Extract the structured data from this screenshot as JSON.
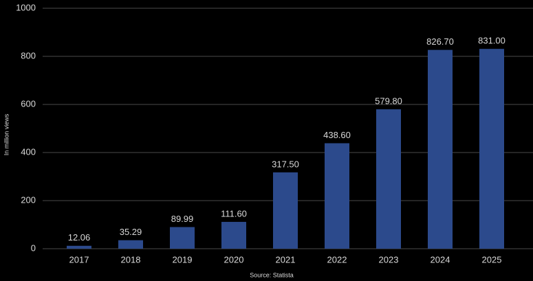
{
  "chart_data": {
    "type": "bar",
    "y_label": "In million views",
    "x_label": "Source: Statista",
    "categories": [
      "2017",
      "2018",
      "2019",
      "2020",
      "2021",
      "2022",
      "2023",
      "2024",
      "2025"
    ],
    "values": [
      12.06,
      35.29,
      89.99,
      111.6,
      317.5,
      438.6,
      579.8,
      826.7,
      831
    ],
    "value_labels": [
      "12.06",
      "35.29",
      "89.99",
      "111.60",
      "317.50",
      "438.60",
      "579.80",
      "826.70",
      "831.00"
    ],
    "color": "#2c4a8c",
    "ylim": [
      0,
      1000
    ],
    "yticks": [
      0,
      200,
      400,
      600,
      800,
      1000
    ],
    "grid": true
  }
}
